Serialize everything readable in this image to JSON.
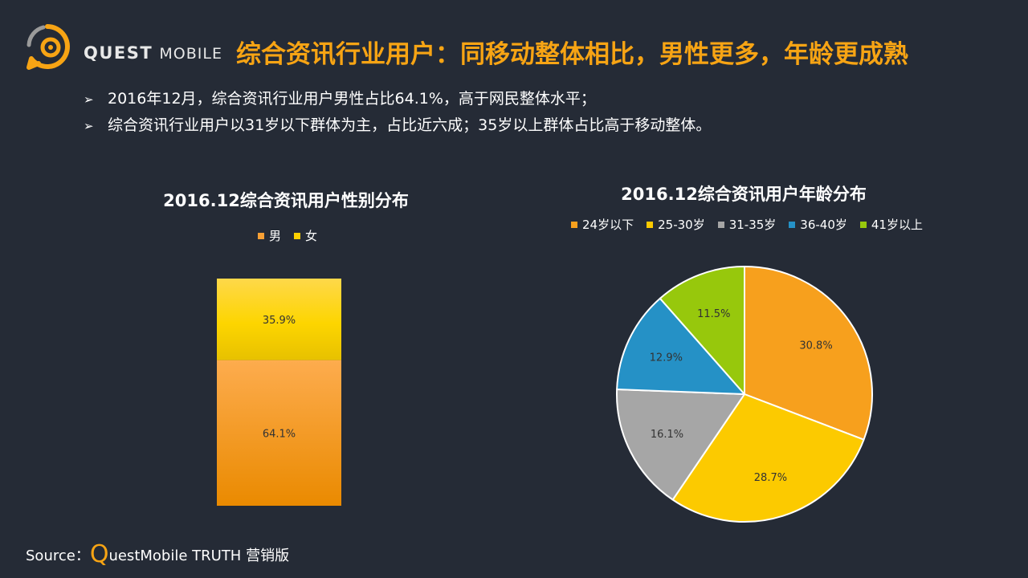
{
  "header": {
    "logo_brand": "QUEST",
    "logo_brand2": "MOBILE",
    "title": "综合资讯行业用户：同移动整体相比，男性更多，年龄更成熟"
  },
  "bullets": [
    "2016年12月，综合资讯行业用户男性占比64.1%，高于网民整体水平；",
    "综合资讯行业用户以31岁以下群体为主，占比近六成；35岁以上群体占比高于移动整体。"
  ],
  "bullet_marker": "➢",
  "source": {
    "prefix": "Source：",
    "q": "Q",
    "rest": "uestMobile TRUTH 营销版"
  },
  "chart_data": [
    {
      "type": "bar",
      "stacked": true,
      "title": "2016.12综合资讯用户性别分布",
      "categories": [
        ""
      ],
      "series": [
        {
          "name": "男",
          "values": [
            64.1
          ],
          "label": "64.1%",
          "color": "#f7a035"
        },
        {
          "name": "女",
          "values": [
            35.9
          ],
          "label": "35.9%",
          "color": "#fcd000"
        }
      ],
      "ylim": [
        0,
        100
      ],
      "legend": "top"
    },
    {
      "type": "pie",
      "title": "2016.12综合资讯用户年龄分布",
      "slices": [
        {
          "name": "24岁以下",
          "value": 30.8,
          "label": "30.8%",
          "color": "#f7a01d"
        },
        {
          "name": "25-30岁",
          "value": 28.7,
          "label": "28.7%",
          "color": "#fcca00"
        },
        {
          "name": "31-35岁",
          "value": 16.1,
          "label": "16.1%",
          "color": "#a6a6a6"
        },
        {
          "name": "36-40岁",
          "value": 12.9,
          "label": "12.9%",
          "color": "#2591c6"
        },
        {
          "name": "41岁以上",
          "value": 11.5,
          "label": "11.5%",
          "color": "#97c80c"
        }
      ],
      "legend": "top"
    }
  ]
}
